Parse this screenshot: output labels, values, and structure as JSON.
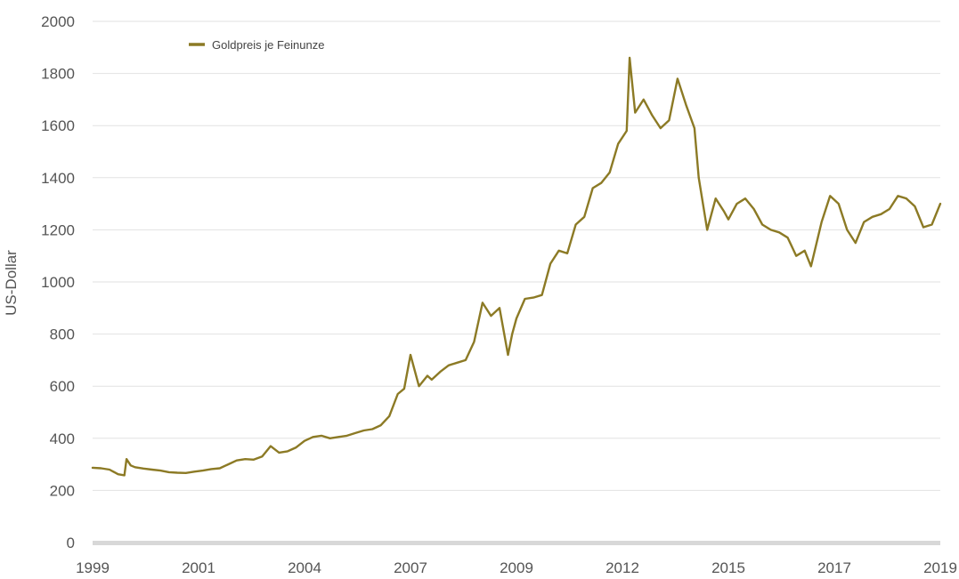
{
  "chart_data": {
    "type": "line",
    "title": "",
    "xlabel": "",
    "ylabel": "US-Dollar",
    "ylim": [
      0,
      2000
    ],
    "xlim": [
      1999.0,
      2019.0
    ],
    "y_ticks": [
      0,
      200,
      400,
      600,
      800,
      1000,
      1200,
      1400,
      1600,
      1800,
      2000
    ],
    "x_tick_labels": [
      "1999",
      "2001",
      "2004",
      "2007",
      "2009",
      "2012",
      "2015",
      "2017",
      "2019"
    ],
    "grid": true,
    "legend_position": "top-left",
    "series": [
      {
        "name": "Goldpreis je Feinunze",
        "color": "#8c7a25",
        "x": [
          1999.0,
          1999.2,
          1999.4,
          1999.6,
          1999.75,
          1999.8,
          1999.9,
          2000.0,
          2000.2,
          2000.4,
          2000.6,
          2000.8,
          2001.0,
          2001.2,
          2001.4,
          2001.6,
          2001.8,
          2002.0,
          2002.2,
          2002.4,
          2002.6,
          2002.8,
          2003.0,
          2003.2,
          2003.4,
          2003.6,
          2003.8,
          2004.0,
          2004.2,
          2004.4,
          2004.6,
          2004.8,
          2005.0,
          2005.2,
          2005.4,
          2005.6,
          2005.8,
          2006.0,
          2006.2,
          2006.35,
          2006.5,
          2006.7,
          2006.9,
          2007.0,
          2007.2,
          2007.4,
          2007.6,
          2007.8,
          2008.0,
          2008.2,
          2008.4,
          2008.6,
          2008.8,
          2008.9,
          2009.0,
          2009.2,
          2009.4,
          2009.6,
          2009.8,
          2010.0,
          2010.2,
          2010.4,
          2010.6,
          2010.8,
          2011.0,
          2011.2,
          2011.4,
          2011.6,
          2011.67,
          2011.8,
          2012.0,
          2012.2,
          2012.4,
          2012.6,
          2012.8,
          2013.0,
          2013.2,
          2013.3,
          2013.5,
          2013.7,
          2013.9,
          2014.0,
          2014.2,
          2014.4,
          2014.6,
          2014.8,
          2015.0,
          2015.2,
          2015.4,
          2015.6,
          2015.8,
          2015.95,
          2016.2,
          2016.4,
          2016.6,
          2016.8,
          2017.0,
          2017.2,
          2017.4,
          2017.6,
          2017.8,
          2018.0,
          2018.2,
          2018.4,
          2018.6,
          2018.8,
          2019.0
        ],
        "values": [
          287,
          285,
          280,
          262,
          258,
          320,
          296,
          289,
          284,
          280,
          276,
          270,
          268,
          267,
          272,
          276,
          282,
          285,
          300,
          315,
          320,
          318,
          330,
          370,
          345,
          350,
          365,
          390,
          405,
          410,
          400,
          405,
          410,
          420,
          430,
          435,
          450,
          485,
          570,
          590,
          720,
          600,
          640,
          625,
          655,
          680,
          690,
          700,
          770,
          920,
          870,
          900,
          720,
          800,
          860,
          935,
          940,
          950,
          1070,
          1120,
          1110,
          1220,
          1250,
          1360,
          1380,
          1420,
          1530,
          1580,
          1860,
          1650,
          1700,
          1640,
          1590,
          1620,
          1780,
          1680,
          1590,
          1400,
          1200,
          1320,
          1270,
          1240,
          1300,
          1320,
          1280,
          1220,
          1200,
          1190,
          1170,
          1100,
          1120,
          1060,
          1230,
          1330,
          1300,
          1200,
          1150,
          1230,
          1250,
          1260,
          1280,
          1330,
          1320,
          1290,
          1210,
          1220,
          1300
        ]
      }
    ]
  }
}
